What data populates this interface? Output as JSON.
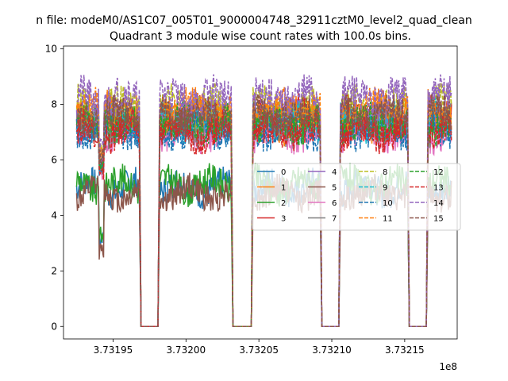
{
  "chart_data": {
    "type": "line",
    "suptitle": "n file: modeM0/AS1C07_005T01_9000004748_32911cztM0_level2_quad_clean",
    "title": "Quadrant 3 module wise count rates with 100.0s bins.",
    "xlabel": "",
    "ylabel": "",
    "x_offset_label": "1e8",
    "xlim": [
      3.731916,
      3.732186
    ],
    "ylim": [
      -0.45,
      10.1
    ],
    "x_ticks": [
      3.73195,
      3.732,
      3.73205,
      3.7321,
      3.73215
    ],
    "x_tick_labels": [
      "3.73195",
      "3.73200",
      "3.73205",
      "3.73210",
      "3.73215"
    ],
    "y_ticks": [
      0,
      2,
      4,
      6,
      8,
      10
    ],
    "y_tick_labels": [
      "0",
      "2",
      "4",
      "6",
      "8",
      "10"
    ],
    "legend": {
      "placement": "center-right",
      "columns": 4
    },
    "segments": [
      {
        "start": 3.731925,
        "end": 3.731968
      },
      {
        "start": 3.731982,
        "end": 3.732031
      },
      {
        "start": 3.732046,
        "end": 3.732092
      },
      {
        "start": 3.732106,
        "end": 3.732152
      },
      {
        "start": 3.732166,
        "end": 3.732182
      }
    ],
    "gap_value": 0,
    "series": [
      {
        "name": "0",
        "color": "#1f77b4",
        "style": "solid",
        "level": 5.0,
        "spread": 0.55,
        "dip_to": 2.8
      },
      {
        "name": "1",
        "color": "#ff7f0e",
        "style": "solid",
        "level": 7.3,
        "spread": 0.6,
        "dip_to": 5.5
      },
      {
        "name": "2",
        "color": "#2ca02c",
        "style": "solid",
        "level": 5.1,
        "spread": 0.55,
        "dip_to": 3.0
      },
      {
        "name": "3",
        "color": "#d62728",
        "style": "solid",
        "level": 7.6,
        "spread": 0.65,
        "dip_to": 5.8
      },
      {
        "name": "4",
        "color": "#9467bd",
        "style": "solid",
        "level": 7.5,
        "spread": 0.6,
        "dip_to": 5.6
      },
      {
        "name": "5",
        "color": "#8c564b",
        "style": "solid",
        "level": 4.8,
        "spread": 0.5,
        "dip_to": 2.4
      },
      {
        "name": "6",
        "color": "#e377c2",
        "style": "solid",
        "level": 7.0,
        "spread": 0.6,
        "dip_to": 5.3
      },
      {
        "name": "7",
        "color": "#7f7f7f",
        "style": "solid",
        "level": 7.2,
        "spread": 0.6,
        "dip_to": 5.4
      },
      {
        "name": "8",
        "color": "#bcbd22",
        "style": "dashed",
        "level": 7.9,
        "spread": 0.65,
        "dip_to": 6.0
      },
      {
        "name": "9",
        "color": "#17becf",
        "style": "dashed",
        "level": 7.4,
        "spread": 0.6,
        "dip_to": 5.7
      },
      {
        "name": "10",
        "color": "#1f77b4",
        "style": "dashed",
        "level": 7.1,
        "spread": 0.6,
        "dip_to": 5.4
      },
      {
        "name": "11",
        "color": "#ff7f0e",
        "style": "dashed",
        "level": 7.8,
        "spread": 0.65,
        "dip_to": 5.9
      },
      {
        "name": "12",
        "color": "#2ca02c",
        "style": "dashed",
        "level": 7.3,
        "spread": 0.6,
        "dip_to": 5.5
      },
      {
        "name": "13",
        "color": "#d62728",
        "style": "dashed",
        "level": 7.0,
        "spread": 0.6,
        "dip_to": 5.2
      },
      {
        "name": "14",
        "color": "#9467bd",
        "style": "dashed",
        "level": 8.2,
        "spread": 0.7,
        "dip_to": 6.2
      },
      {
        "name": "15",
        "color": "#8c564b",
        "style": "dashed",
        "level": 7.6,
        "spread": 0.6,
        "dip_to": 5.8
      }
    ]
  }
}
